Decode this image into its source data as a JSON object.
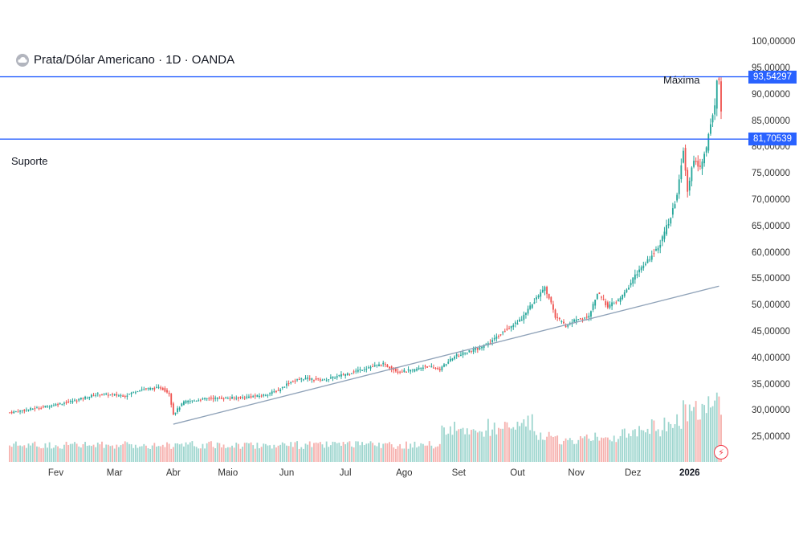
{
  "chart_title": "Prata/Dólar Americano · 1D · OANDA",
  "colors": {
    "up": "#26a69a",
    "down": "#ef5350",
    "hline": "#2962ff",
    "trend": "#8fa2b8",
    "bg": "#ffffff"
  },
  "icons": {
    "symbol_logo": "cloud-logo-icon",
    "alert": "flash-alert-icon"
  },
  "chart_data": {
    "type": "candlestick",
    "title": "Prata/Dólar Americano · 1D · OANDA",
    "timeframe": "1D",
    "source": "OANDA",
    "y_range": [
      22,
      100
    ],
    "y_ticks": [
      "100,00000",
      "95,00000",
      "90,00000",
      "85,00000",
      "80,00000",
      "75,00000",
      "70,00000",
      "65,00000",
      "60,00000",
      "55,00000",
      "50,00000",
      "45,00000",
      "40,00000",
      "35,00000",
      "30,00000",
      "25,00000"
    ],
    "x_ticks": [
      "Fev",
      "Mar",
      "Abr",
      "Maio",
      "Jun",
      "Jul",
      "Ago",
      "Set",
      "Out",
      "Nov",
      "Dez",
      "2026"
    ],
    "x_tick_days": [
      22,
      50,
      78,
      104,
      132,
      160,
      188,
      214,
      242,
      270,
      297,
      324
    ],
    "horizontal_lines": [
      {
        "name": "Máxima",
        "value": 93.54297,
        "label": "93,54297"
      },
      {
        "name": "Suporte",
        "value": 81.70539,
        "label": "81,70539"
      }
    ],
    "annotations": {
      "max_label": "Máxima",
      "support_label": "Suporte"
    },
    "trendline": {
      "start": {
        "day": 78,
        "value": 27.6
      },
      "end": {
        "day": 338,
        "value": 53.8
      }
    },
    "close_path": [
      [
        0,
        29.8
      ],
      [
        15,
        30.8
      ],
      [
        28,
        31.8
      ],
      [
        42,
        33.3
      ],
      [
        55,
        33.0
      ],
      [
        62,
        34.2
      ],
      [
        72,
        34.5
      ],
      [
        76,
        33.5
      ],
      [
        78,
        29.5
      ],
      [
        83,
        31.8
      ],
      [
        95,
        32.5
      ],
      [
        108,
        32.6
      ],
      [
        120,
        33.0
      ],
      [
        128,
        34.0
      ],
      [
        133,
        35.5
      ],
      [
        140,
        36.3
      ],
      [
        150,
        36.0
      ],
      [
        160,
        37.1
      ],
      [
        170,
        38.3
      ],
      [
        178,
        39.0
      ],
      [
        185,
        37.6
      ],
      [
        192,
        37.8
      ],
      [
        198,
        38.6
      ],
      [
        205,
        38.0
      ],
      [
        212,
        40.5
      ],
      [
        220,
        41.5
      ],
      [
        228,
        42.8
      ],
      [
        236,
        45.5
      ],
      [
        244,
        47.5
      ],
      [
        250,
        51.0
      ],
      [
        255,
        53.5
      ],
      [
        258,
        50.5
      ],
      [
        260,
        48.0
      ],
      [
        265,
        46.2
      ],
      [
        270,
        47.5
      ],
      [
        276,
        48.0
      ],
      [
        280,
        52.5
      ],
      [
        285,
        50.0
      ],
      [
        290,
        51.0
      ],
      [
        294,
        53.0
      ],
      [
        298,
        56.0
      ],
      [
        303,
        58.0
      ],
      [
        310,
        62.0
      ],
      [
        315,
        67.0
      ],
      [
        318,
        71.0
      ],
      [
        321,
        80.0
      ],
      [
        323,
        72.0
      ],
      [
        326,
        78.0
      ],
      [
        329,
        76.0
      ],
      [
        332,
        80.0
      ],
      [
        334,
        85.0
      ],
      [
        336,
        88.0
      ],
      [
        337,
        93.0
      ],
      [
        338,
        92.5
      ],
      [
        339,
        87.0
      ]
    ]
  }
}
